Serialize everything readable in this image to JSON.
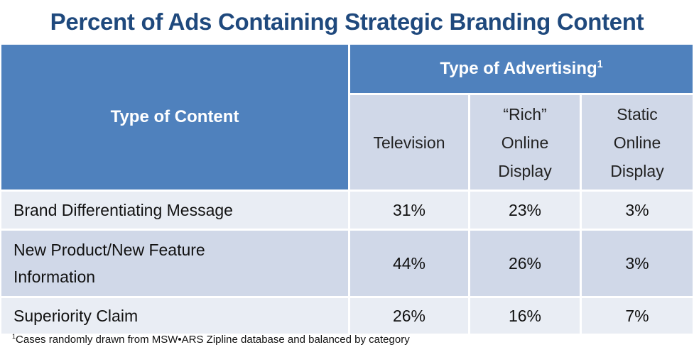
{
  "title": "Percent of Ads Containing Strategic Branding Content",
  "chart_data": {
    "type": "table",
    "row_header": "Type of Content",
    "column_group_header": "Type of Advertising",
    "column_group_superscript": "1",
    "columns": [
      "Television",
      "“Rich” Online Display",
      "Static Online Display"
    ],
    "rows": [
      {
        "label": "Brand Differentiating Message",
        "values": [
          "31%",
          "23%",
          "3%"
        ]
      },
      {
        "label": "New Product/New Feature Information",
        "values": [
          "44%",
          "26%",
          "3%"
        ]
      },
      {
        "label": "Superiority Claim",
        "values": [
          "26%",
          "16%",
          "7%"
        ]
      }
    ]
  },
  "column_lines": {
    "rich": [
      "“Rich”",
      "Online",
      "Display"
    ],
    "static": [
      "Static",
      "Online",
      "Display"
    ],
    "row2_label": [
      "New Product/New Feature",
      "Information"
    ]
  },
  "footnote": {
    "marker": "1",
    "text": "Cases randomly drawn from MSW•ARS Zipline  database and balanced by category"
  },
  "colors": {
    "header": "#4f81bd",
    "title": "#1f497d",
    "band_dark": "#d0d8e8",
    "band_light": "#e9edf4"
  }
}
